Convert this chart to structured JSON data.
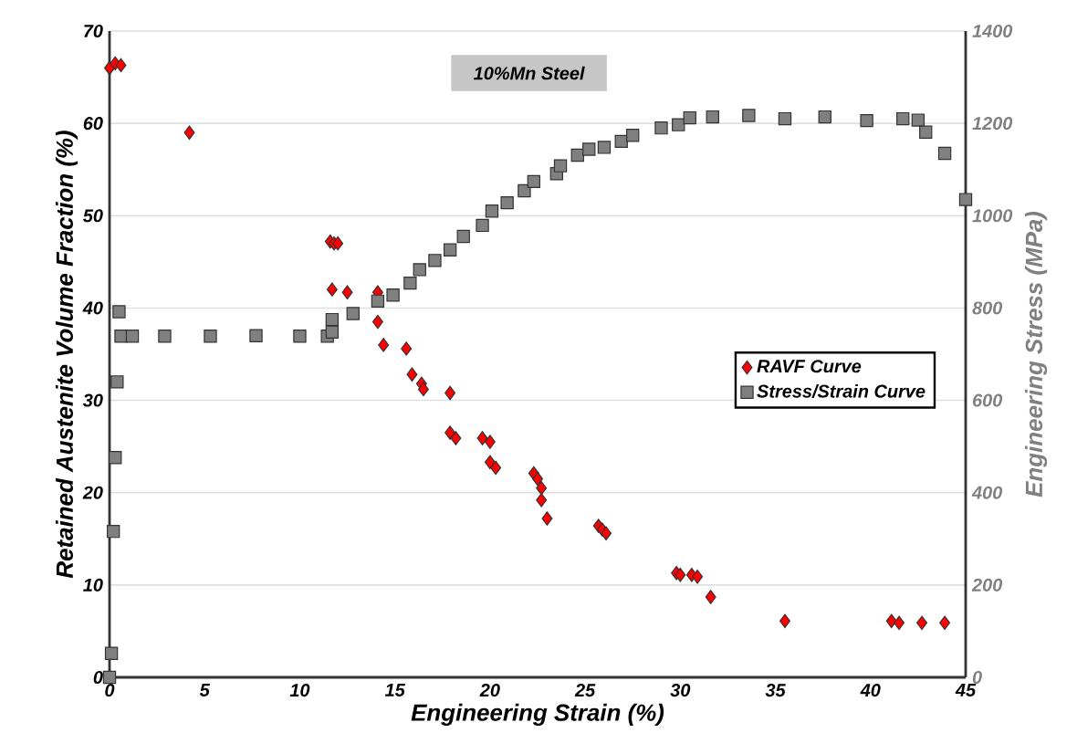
{
  "chart_data": {
    "type": "scatter",
    "xlabel": "Engineering Strain (%)",
    "ylabel": "Retained Austenite Volume Fraction (%)",
    "y2label": "Engineering Stress (MPa)",
    "annotations": [
      "10%Mn Steel"
    ],
    "xlim": [
      0,
      45
    ],
    "xticks": [
      0,
      5,
      10,
      15,
      20,
      25,
      30,
      35,
      40,
      45
    ],
    "ylim": [
      0,
      70
    ],
    "yticks": [
      0,
      10,
      20,
      30,
      40,
      50,
      60,
      70
    ],
    "y2lim": [
      0,
      1400
    ],
    "y2ticks": [
      0,
      200,
      400,
      600,
      800,
      1000,
      1200,
      1400
    ],
    "grid": "y",
    "legend": "right",
    "series": [
      {
        "name": "RAVF Curve",
        "color": "#ff0000",
        "marker": "diamond",
        "x": [
          0,
          0.3,
          0.6,
          4.2,
          11.6,
          11.8,
          12.0,
          11.7,
          12.5,
          14.1,
          14.1,
          14.4,
          15.6,
          15.9,
          16.4,
          16.5,
          17.9,
          17.9,
          18.2,
          19.6,
          20.0,
          20.0,
          20.3,
          22.3,
          22.5,
          22.7,
          22.7,
          23.0,
          25.7,
          25.9,
          26.1,
          29.8,
          30.0,
          30.6,
          30.9,
          31.6,
          35.5,
          41.1,
          41.5,
          42.7,
          43.9
        ],
        "values": [
          66,
          66.5,
          66.3,
          59,
          47.2,
          47,
          47,
          42,
          41.7,
          41.7,
          38.5,
          36,
          35.6,
          32.8,
          31.8,
          31.2,
          30.8,
          26.5,
          25.9,
          25.9,
          25.5,
          23.3,
          22.7,
          22.1,
          21.5,
          20.5,
          19.2,
          17.2,
          16.4,
          16,
          15.6,
          11.3,
          11.1,
          11.1,
          10.9,
          8.7,
          6.1,
          6.1,
          5.9,
          5.9,
          5.9
        ]
      },
      {
        "name": "Stress/Strain Curve",
        "color": "#808080",
        "marker": "square",
        "axis": "y2",
        "x": [
          0,
          0.1,
          0.2,
          0.3,
          0.4,
          0.5,
          0.6,
          1.2,
          2.9,
          5.3,
          7.7,
          10.0,
          11.45,
          11.7,
          11.7,
          12.8,
          14.1,
          14.9,
          15.8,
          16.3,
          17.1,
          17.9,
          18.6,
          19.6,
          20.1,
          20.9,
          21.8,
          22.3,
          23.5,
          23.7,
          24.6,
          25.2,
          26.0,
          26.9,
          27.5,
          29.0,
          29.9,
          30.3,
          30.5,
          31.7,
          33.6,
          35.5,
          37.6,
          39.8,
          41.7,
          42.5,
          42.9,
          43.9,
          45.0
        ],
        "values": [
          0,
          52,
          316,
          476,
          640,
          792,
          739,
          739,
          739,
          739,
          740,
          739,
          739,
          748,
          775,
          788,
          815,
          828,
          854,
          883,
          903,
          926,
          955,
          979,
          1010,
          1028,
          1054,
          1074,
          1091,
          1108,
          1131,
          1144,
          1148,
          1161,
          1174,
          1190,
          1197,
          null,
          1212,
          1214,
          1217,
          1210,
          1214,
          1206,
          1210,
          1207,
          1181,
          1135,
          1035
        ]
      }
    ]
  }
}
